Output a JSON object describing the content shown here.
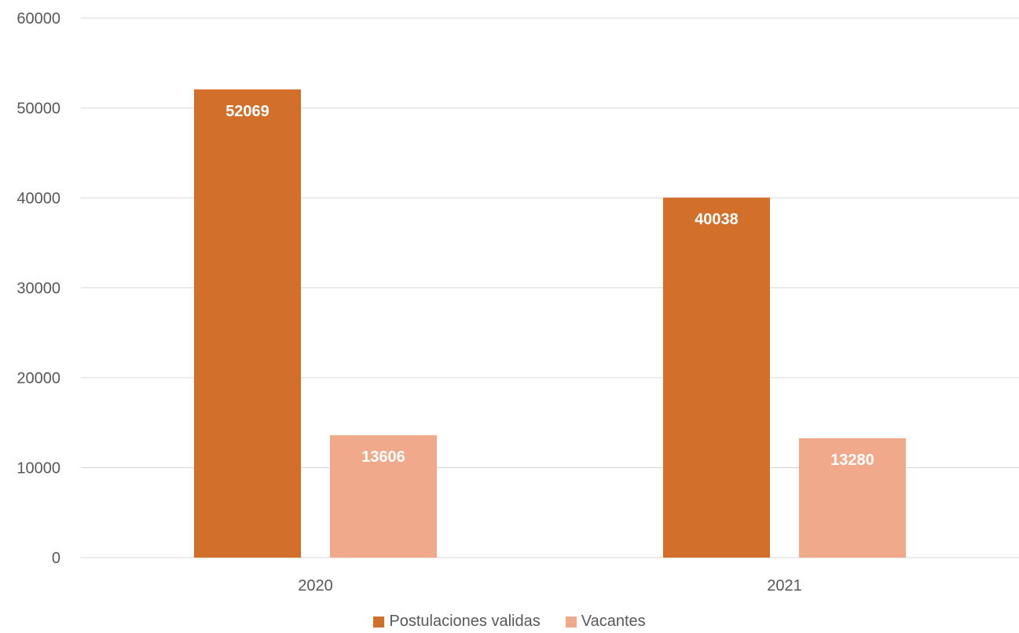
{
  "chart_data": {
    "type": "bar",
    "title": "",
    "xlabel": "",
    "ylabel": "",
    "categories": [
      "2020",
      "2021"
    ],
    "series": [
      {
        "name": "Postulaciones validas",
        "values": [
          52069,
          40038
        ],
        "color": "#D2702B"
      },
      {
        "name": "Vacantes",
        "values": [
          13606,
          13280
        ],
        "color": "#F0A98A"
      }
    ],
    "ylim": [
      0,
      60000
    ],
    "yticks": [
      0,
      10000,
      20000,
      30000,
      40000,
      50000,
      60000
    ],
    "grid": true,
    "legend_position": "bottom",
    "data_labels": true
  }
}
